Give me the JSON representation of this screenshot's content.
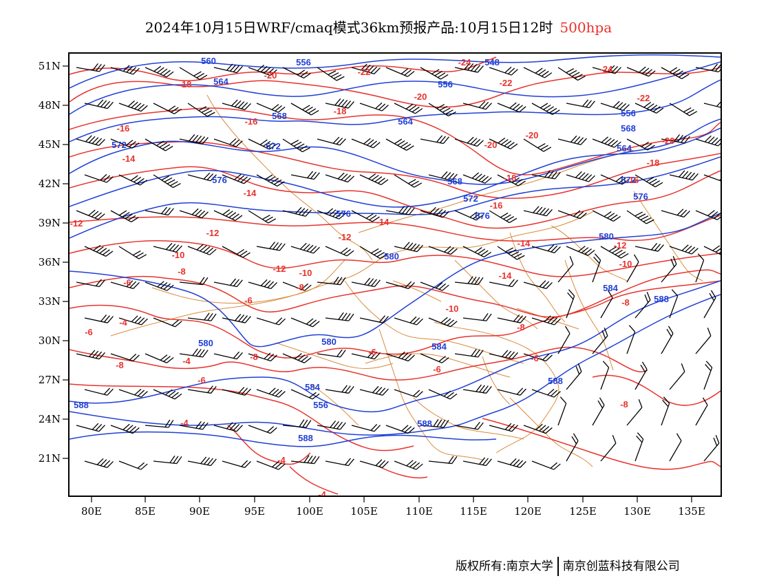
{
  "title": {
    "main": "2024年10月15日WRF/cmaq模式36km预报产品:10月15日12时",
    "level": "500hpa",
    "level_color": "#e8322c"
  },
  "colors": {
    "geopotential": "#1f3fd6",
    "temperature": "#e8322c",
    "border": "#d98b3a",
    "wind": "#000000"
  },
  "axes": {
    "lon_ticks": [
      "80E",
      "85E",
      "90E",
      "95E",
      "100E",
      "105E",
      "110E",
      "115E",
      "120E",
      "125E",
      "130E",
      "135E"
    ],
    "lat_ticks": [
      "51N",
      "48N",
      "45N",
      "42N",
      "39N",
      "36N",
      "33N",
      "30N",
      "27N",
      "24N",
      "21N"
    ]
  },
  "contour_labels": {
    "geopotential": [
      "560",
      "556",
      "564",
      "568",
      "572",
      "576",
      "580",
      "584",
      "588",
      "548",
      "552"
    ],
    "temperature": [
      "-24",
      "-22",
      "-20",
      "-18",
      "-16",
      "-14",
      "-12",
      "-10",
      "-8",
      "-6",
      "-4"
    ]
  },
  "footer": {
    "copyright": "版权所有:南京大学",
    "partner": "南京创蓝科技有限公司"
  }
}
